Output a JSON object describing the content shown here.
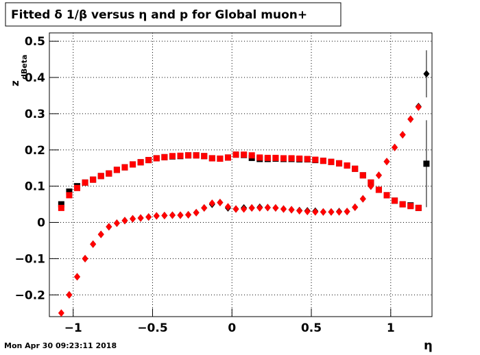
{
  "chart_data": {
    "type": "scatter",
    "title": "Fitted δ 1/β versus η and p for Global muon+",
    "xlabel": "η",
    "ylabel": "z",
    "ylabel_sub": "dBeta",
    "footer": "Mon Apr 30 09:23:11 2018",
    "xlim": [
      -1.15,
      1.26
    ],
    "ylim": [
      -0.26,
      0.523
    ],
    "xticks": [
      {
        "value": -1,
        "label": "−1"
      },
      {
        "value": -0.5,
        "label": "−0.5"
      },
      0,
      0.5,
      1
    ],
    "yticks": [
      {
        "value": -0.2,
        "label": "−0.2"
      },
      {
        "value": -0.1,
        "label": "−0.1"
      },
      0,
      0.1,
      0.2,
      0.3,
      0.4,
      0.5
    ],
    "grid": true,
    "x": [
      -1.075,
      -1.025,
      -0.975,
      -0.925,
      -0.875,
      -0.825,
      -0.775,
      -0.725,
      -0.675,
      -0.625,
      -0.575,
      -0.525,
      -0.475,
      -0.425,
      -0.375,
      -0.325,
      -0.275,
      -0.225,
      -0.175,
      -0.125,
      -0.075,
      -0.025,
      0.025,
      0.075,
      0.125,
      0.175,
      0.225,
      0.275,
      0.325,
      0.375,
      0.425,
      0.475,
      0.525,
      0.575,
      0.625,
      0.675,
      0.725,
      0.775,
      0.825,
      0.875,
      0.925,
      0.975,
      1.025,
      1.075,
      1.125,
      1.175,
      1.225
    ],
    "series": [
      {
        "color": "#000000",
        "marker": "square",
        "values": [
          0.05,
          0.085,
          0.1,
          0.11,
          0.118,
          0.128,
          0.135,
          0.145,
          0.152,
          0.16,
          0.166,
          0.172,
          0.177,
          0.18,
          0.182,
          0.183,
          0.185,
          0.185,
          0.183,
          0.177,
          0.176,
          0.179,
          0.187,
          0.186,
          0.178,
          0.175,
          0.175,
          0.176,
          0.175,
          0.175,
          0.174,
          0.174,
          0.172,
          0.17,
          0.167,
          0.163,
          0.157,
          0.148,
          0.13,
          0.11,
          0.09,
          0.075,
          0.06,
          0.05,
          0.047,
          0.04,
          0.162
        ],
        "errors": [
          null,
          null,
          null,
          null,
          null,
          null,
          null,
          null,
          null,
          null,
          null,
          null,
          null,
          null,
          null,
          null,
          null,
          null,
          null,
          null,
          null,
          null,
          null,
          null,
          null,
          null,
          null,
          null,
          null,
          null,
          null,
          null,
          null,
          null,
          null,
          null,
          null,
          null,
          null,
          null,
          null,
          null,
          null,
          null,
          null,
          null,
          0.12
        ]
      },
      {
        "color": "#ff0000",
        "marker": "square",
        "values": [
          0.04,
          0.075,
          0.095,
          0.11,
          0.118,
          0.128,
          0.135,
          0.145,
          0.152,
          0.16,
          0.166,
          0.172,
          0.177,
          0.18,
          0.183,
          0.184,
          0.185,
          0.185,
          0.183,
          0.177,
          0.176,
          0.179,
          0.187,
          0.187,
          0.185,
          0.179,
          0.178,
          0.178,
          0.177,
          0.177,
          0.176,
          0.175,
          0.173,
          0.17,
          0.167,
          0.163,
          0.157,
          0.148,
          0.13,
          0.11,
          0.09,
          0.075,
          0.06,
          0.05,
          0.045,
          0.04,
          null
        ]
      },
      {
        "color": "#000000",
        "marker": "diamond",
        "values": [
          null,
          -0.2,
          -0.15,
          -0.1,
          -0.06,
          -0.033,
          -0.012,
          -0.002,
          0.005,
          0.01,
          0.012,
          0.015,
          0.018,
          0.019,
          0.02,
          0.02,
          0.021,
          0.027,
          0.04,
          0.05,
          0.055,
          0.04,
          0.037,
          0.04,
          0.04,
          0.042,
          0.041,
          0.04,
          0.037,
          0.035,
          0.033,
          0.032,
          0.031,
          0.029,
          0.029,
          0.03,
          0.03,
          0.042,
          0.065,
          0.1,
          0.13,
          0.168,
          0.207,
          0.242,
          0.285,
          0.32,
          0.41
        ],
        "errors": [
          null,
          null,
          null,
          null,
          null,
          null,
          null,
          null,
          null,
          null,
          null,
          null,
          null,
          null,
          null,
          null,
          null,
          null,
          null,
          null,
          null,
          null,
          null,
          null,
          null,
          null,
          null,
          null,
          null,
          null,
          null,
          null,
          null,
          null,
          null,
          null,
          null,
          null,
          null,
          null,
          null,
          null,
          null,
          null,
          null,
          null,
          0.065
        ]
      },
      {
        "color": "#ff0000",
        "marker": "diamond",
        "values": [
          -0.25,
          -0.2,
          -0.15,
          -0.1,
          -0.06,
          -0.033,
          -0.012,
          -0.002,
          0.005,
          0.01,
          0.012,
          0.015,
          0.018,
          0.019,
          0.02,
          0.02,
          0.021,
          0.027,
          0.04,
          0.053,
          0.055,
          0.043,
          0.037,
          0.037,
          0.04,
          0.04,
          0.041,
          0.04,
          0.037,
          0.035,
          0.032,
          0.03,
          0.029,
          0.029,
          0.029,
          0.029,
          0.03,
          0.042,
          0.065,
          0.1,
          0.13,
          0.168,
          0.207,
          0.242,
          0.285,
          0.318,
          null
        ]
      }
    ]
  }
}
